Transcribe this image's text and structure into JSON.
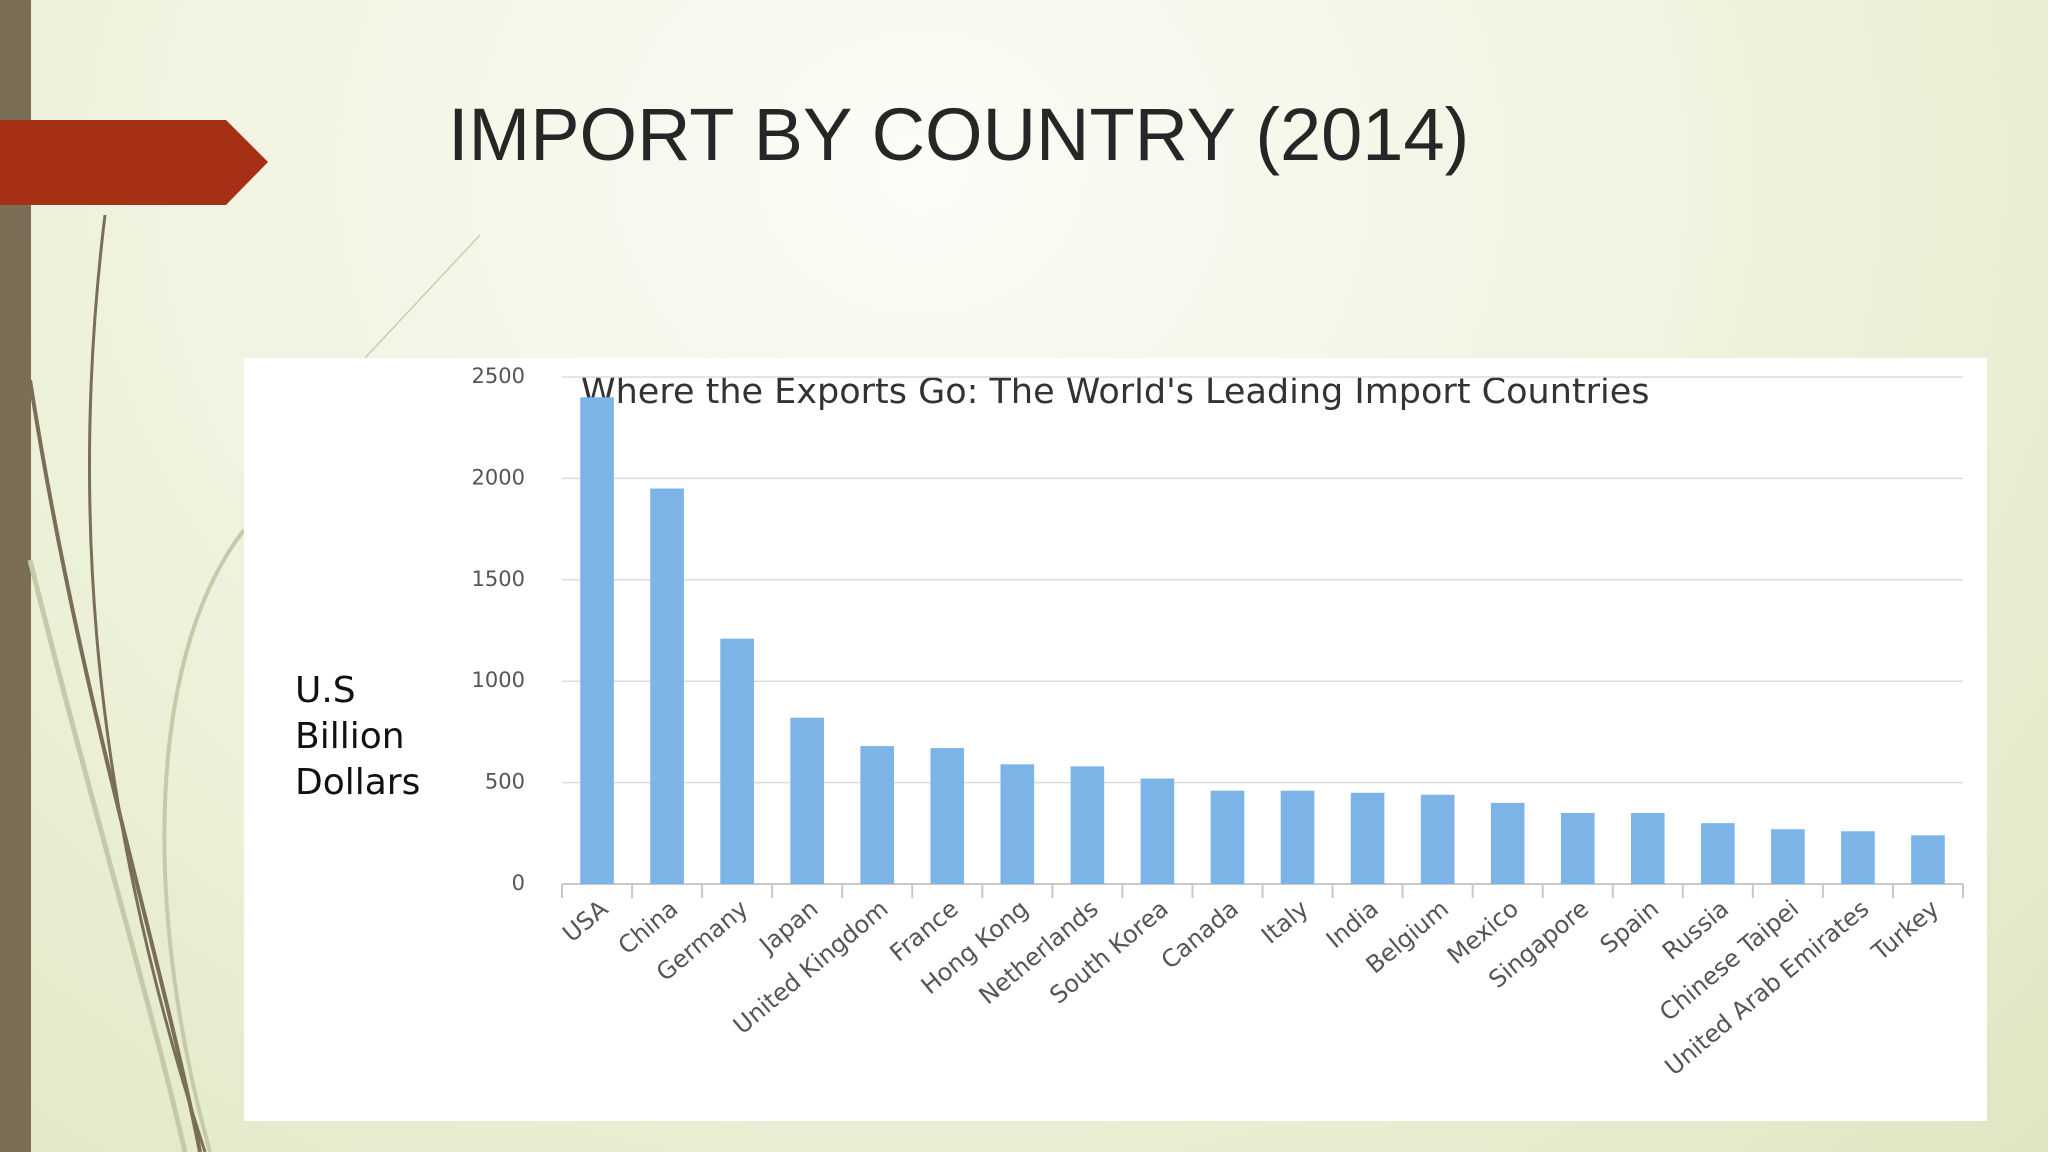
{
  "slide_title": "IMPORT BY COUNTRY (2014)",
  "chart_data": {
    "type": "bar",
    "title": "Where the Exports Go: The World's Leading Import Countries",
    "y_label": "U.S Billion Dollars",
    "categories": [
      "USA",
      "China",
      "Germany",
      "Japan",
      "United Kingdom",
      "France",
      "Hong Kong",
      "Netherlands",
      "South Korea",
      "Canada",
      "Italy",
      "India",
      "Belgium",
      "Mexico",
      "Singapore",
      "Spain",
      "Russia",
      "Chinese Taipei",
      "United Arab Emirates",
      "Turkey"
    ],
    "values": [
      2400,
      1950,
      1210,
      820,
      680,
      670,
      590,
      580,
      520,
      460,
      460,
      450,
      440,
      400,
      350,
      350,
      300,
      270,
      260,
      240
    ],
    "color": "#7cb4e8",
    "ylim": [
      0,
      2500
    ],
    "yticks": [
      0,
      500,
      1000,
      1500,
      2000,
      2500
    ],
    "grid": true
  }
}
